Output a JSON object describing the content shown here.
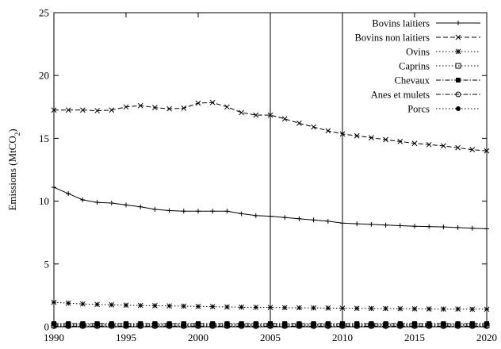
{
  "chart_data": {
    "type": "line",
    "title": "",
    "xlabel": "",
    "ylabel": "Emissions (MtCO2)",
    "ylabel_parts": {
      "main": "Emissions (MtCO",
      "sub": "2",
      "end": ")"
    },
    "xlim": [
      1990,
      2020
    ],
    "ylim": [
      0,
      25
    ],
    "xticks": [
      1990,
      1995,
      2000,
      2005,
      2010,
      2015,
      2020
    ],
    "yticks": [
      0,
      5,
      10,
      15,
      20,
      25
    ],
    "grid": false,
    "legend_position": "top-right",
    "vertical_reference_lines": [
      2005,
      2010
    ],
    "x": [
      1990,
      1991,
      1992,
      1993,
      1994,
      1995,
      1996,
      1997,
      1998,
      1999,
      2000,
      2001,
      2002,
      2003,
      2004,
      2005,
      2006,
      2007,
      2008,
      2009,
      2010,
      2011,
      2012,
      2013,
      2014,
      2015,
      2016,
      2017,
      2018,
      2019,
      2020
    ],
    "series": [
      {
        "name": "Bovins laitiers",
        "line_style": "solid",
        "marker": "plus",
        "values": [
          11.1,
          10.6,
          10.1,
          9.9,
          9.85,
          9.7,
          9.55,
          9.35,
          9.25,
          9.2,
          9.2,
          9.2,
          9.2,
          9.0,
          8.85,
          8.8,
          8.7,
          8.6,
          8.5,
          8.4,
          8.25,
          8.2,
          8.15,
          8.1,
          8.05,
          8.0,
          7.98,
          7.95,
          7.9,
          7.85,
          7.8
        ]
      },
      {
        "name": "Bovins non laitiers",
        "line_style": "dashed",
        "marker": "x",
        "values": [
          17.25,
          17.25,
          17.25,
          17.2,
          17.25,
          17.5,
          17.6,
          17.45,
          17.35,
          17.4,
          17.8,
          17.85,
          17.5,
          17.05,
          16.85,
          16.85,
          16.55,
          16.2,
          15.9,
          15.6,
          15.35,
          15.2,
          15.05,
          14.9,
          14.75,
          14.6,
          14.5,
          14.4,
          14.25,
          14.1,
          14.0
        ]
      },
      {
        "name": "Ovins",
        "line_style": "dotted",
        "marker": "star",
        "values": [
          1.95,
          1.88,
          1.82,
          1.78,
          1.75,
          1.72,
          1.7,
          1.68,
          1.66,
          1.64,
          1.62,
          1.6,
          1.58,
          1.56,
          1.55,
          1.54,
          1.52,
          1.51,
          1.5,
          1.49,
          1.48,
          1.47,
          1.46,
          1.45,
          1.44,
          1.43,
          1.42,
          1.41,
          1.41,
          1.4,
          1.4
        ]
      },
      {
        "name": "Caprins",
        "line_style": "dotted",
        "marker": "square-open",
        "values": [
          0.12,
          0.12,
          0.12,
          0.12,
          0.12,
          0.12,
          0.12,
          0.12,
          0.12,
          0.12,
          0.12,
          0.12,
          0.12,
          0.12,
          0.12,
          0.12,
          0.12,
          0.12,
          0.12,
          0.12,
          0.12,
          0.12,
          0.12,
          0.12,
          0.12,
          0.12,
          0.12,
          0.12,
          0.12,
          0.12,
          0.12
        ]
      },
      {
        "name": "Chevaux",
        "line_style": "dashdot",
        "marker": "square-filled",
        "values": [
          0.25,
          0.25,
          0.25,
          0.25,
          0.25,
          0.25,
          0.25,
          0.25,
          0.25,
          0.25,
          0.25,
          0.25,
          0.25,
          0.25,
          0.25,
          0.25,
          0.25,
          0.25,
          0.25,
          0.25,
          0.25,
          0.25,
          0.25,
          0.25,
          0.25,
          0.25,
          0.25,
          0.25,
          0.25,
          0.25,
          0.25
        ]
      },
      {
        "name": "Anes et mulets",
        "line_style": "dashdot",
        "marker": "circle-open",
        "values": [
          0.05,
          0.05,
          0.05,
          0.05,
          0.05,
          0.05,
          0.05,
          0.05,
          0.05,
          0.05,
          0.05,
          0.05,
          0.05,
          0.05,
          0.05,
          0.05,
          0.05,
          0.05,
          0.05,
          0.05,
          0.05,
          0.05,
          0.05,
          0.05,
          0.05,
          0.05,
          0.05,
          0.05,
          0.05,
          0.05,
          0.05
        ]
      },
      {
        "name": "Porcs",
        "line_style": "dotted",
        "marker": "circle-filled",
        "values": [
          0.2,
          0.2,
          0.2,
          0.2,
          0.2,
          0.2,
          0.2,
          0.2,
          0.2,
          0.2,
          0.2,
          0.2,
          0.2,
          0.2,
          0.2,
          0.2,
          0.2,
          0.2,
          0.2,
          0.2,
          0.2,
          0.2,
          0.2,
          0.2,
          0.2,
          0.2,
          0.2,
          0.2,
          0.2,
          0.2,
          0.2
        ]
      }
    ]
  }
}
